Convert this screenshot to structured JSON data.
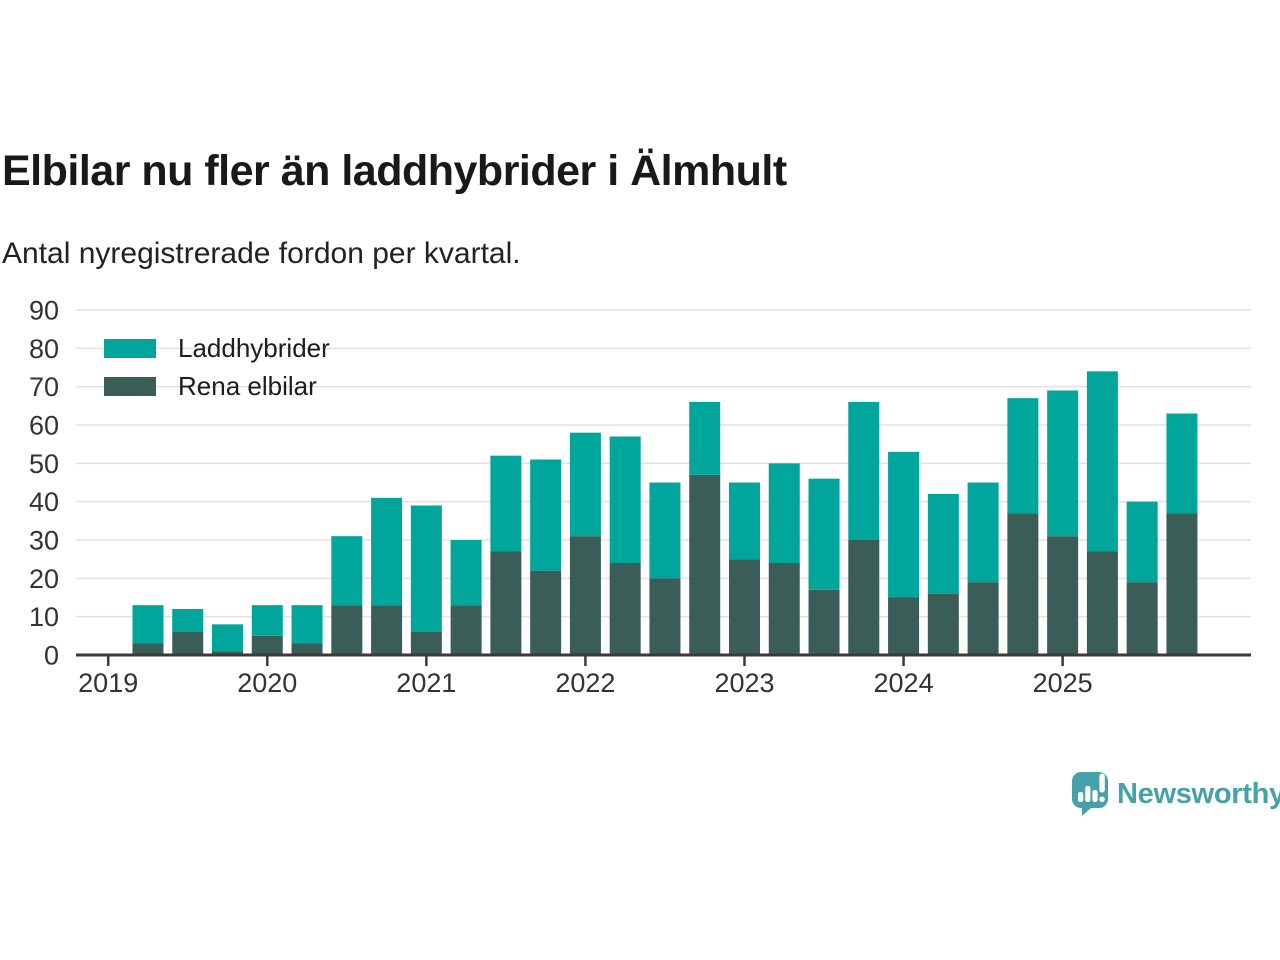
{
  "title": "Elbilar nu fler än laddhybrider i Älmhult",
  "subtitle": "Antal nyregistrerade fordon per kvartal.",
  "legend": [
    {
      "label": "Laddhybrider",
      "color": "#00a69c"
    },
    {
      "label": "Rena elbilar",
      "color": "#3b5d58"
    }
  ],
  "branding": {
    "name": "Newsworthy",
    "icon": "newsworthy-bubble-chart-icon",
    "color": "#46a2a8"
  },
  "chart_data": {
    "type": "bar",
    "stacked": true,
    "title": "Elbilar nu fler än laddhybrider i Älmhult",
    "subtitle": "Antal nyregistrerade fordon per kvartal.",
    "categories": [
      "2019 Q2",
      "2019 Q3",
      "2019 Q4",
      "2020 Q1",
      "2020 Q2",
      "2020 Q3",
      "2020 Q4",
      "2021 Q1",
      "2021 Q2",
      "2021 Q3",
      "2021 Q4",
      "2022 Q1",
      "2022 Q2",
      "2022 Q3",
      "2022 Q4",
      "2023 Q1",
      "2023 Q2",
      "2023 Q3",
      "2023 Q4",
      "2024 Q1",
      "2024 Q2",
      "2024 Q3",
      "2024 Q4",
      "2025 Q1",
      "2025 Q2",
      "2025 Q3",
      "2025 Q4"
    ],
    "series": [
      {
        "name": "Rena elbilar",
        "color": "#3b5d58",
        "stack_position": "bottom",
        "values": [
          3,
          6,
          1,
          5,
          3,
          13,
          13,
          6,
          13,
          27,
          22,
          31,
          24,
          20,
          47,
          25,
          24,
          17,
          30,
          15,
          16,
          19,
          37,
          31,
          27,
          19,
          37
        ]
      },
      {
        "name": "Laddhybrider",
        "color": "#00a69c",
        "stack_position": "top",
        "values": [
          10,
          6,
          7,
          8,
          10,
          18,
          28,
          33,
          17,
          25,
          29,
          27,
          33,
          25,
          19,
          20,
          26,
          29,
          36,
          38,
          26,
          26,
          30,
          38,
          47,
          21,
          26
        ]
      }
    ],
    "totals": [
      13,
      12,
      8,
      13,
      13,
      31,
      41,
      39,
      30,
      52,
      51,
      58,
      57,
      45,
      66,
      45,
      50,
      46,
      66,
      53,
      42,
      45,
      67,
      69,
      74,
      40,
      63
    ],
    "xlabel": "",
    "ylabel": "",
    "x_tick_labels": [
      "2019",
      "2020",
      "2021",
      "2022",
      "2023",
      "2024",
      "2025"
    ],
    "y_ticks": [
      0,
      10,
      20,
      30,
      40,
      50,
      60,
      70,
      80,
      90
    ],
    "ylim": [
      0,
      90
    ],
    "grid": "horizontal",
    "legend_position": "top-left-inside",
    "grid_color": "#e2e2e2",
    "axis_color": "#3a3a3a",
    "tick_label_color": "#333333"
  }
}
